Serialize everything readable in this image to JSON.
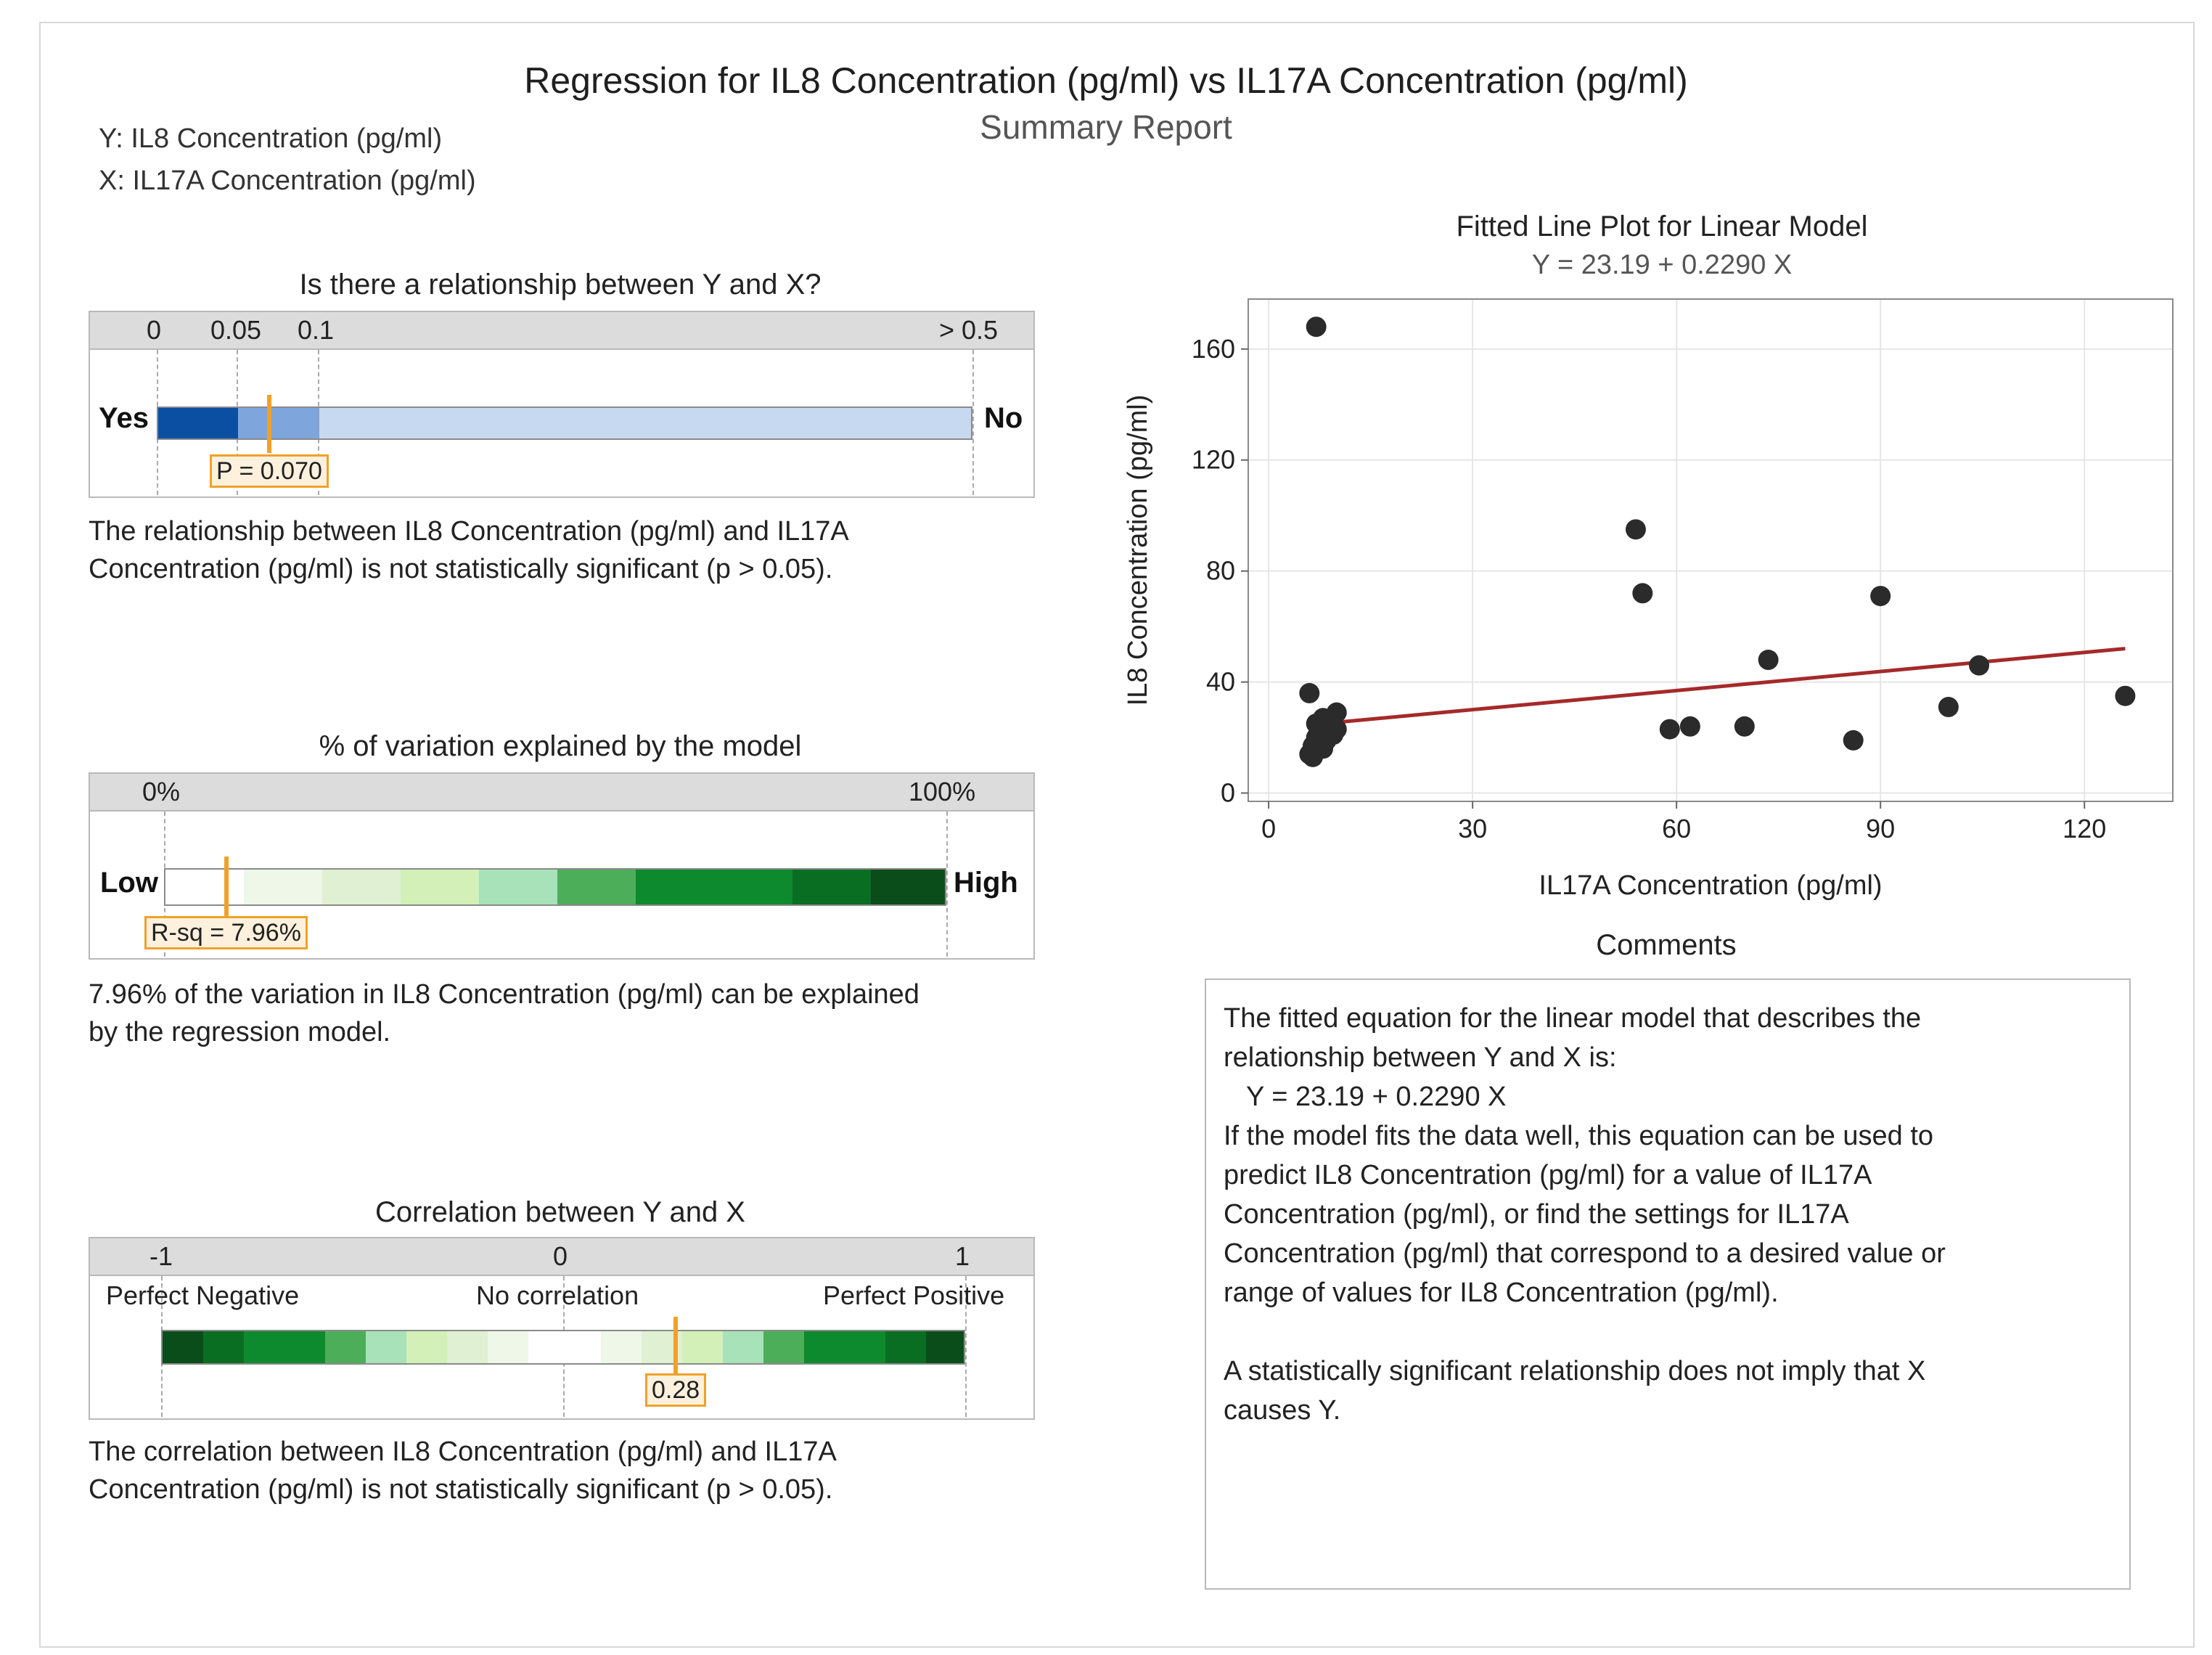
{
  "header": {
    "title": "Regression for IL8 Concentration (pg/ml) vs IL17A Concentration (pg/ml)",
    "subtitle": "Summary Report",
    "y_var": "Y: IL8 Concentration (pg/ml)",
    "x_var": "X: IL17A Concentration (pg/ml)"
  },
  "relationship": {
    "heading": "Is there a relationship between Y and X?",
    "ticks": [
      "0",
      "0.05",
      "0.1",
      "> 0.5"
    ],
    "left_label": "Yes",
    "right_label": "No",
    "p_value": 0.07,
    "p_label": "P = 0.070",
    "description": [
      "The relationship between IL8 Concentration (pg/ml) and IL17A",
      "Concentration (pg/ml) is not statistically significant (p > 0.05)."
    ]
  },
  "variation": {
    "heading": "% of variation explained by the model",
    "tick_left": "0%",
    "tick_right": "100%",
    "left_label": "Low",
    "right_label": "High",
    "r_sq": 7.96,
    "r_sq_label": "R-sq = 7.96%",
    "description": [
      "7.96% of the variation in IL8 Concentration (pg/ml) can be explained",
      "by the regression model."
    ]
  },
  "correlation": {
    "heading": "Correlation between Y and X",
    "ticks": [
      "-1",
      "0",
      "1"
    ],
    "labels": [
      "Perfect Negative",
      "No correlation",
      "Perfect Positive"
    ],
    "value": 0.28,
    "value_label": "0.28",
    "description": [
      "The correlation between IL8 Concentration (pg/ml) and IL17A",
      "Concentration (pg/ml) is not statistically significant (p > 0.05)."
    ]
  },
  "comments": {
    "heading": "Comments",
    "lines": [
      "The fitted equation for the linear model that describes the",
      "relationship between Y and X is:",
      "   Y = 23.19 + 0.2290 X",
      "If the model fits the data well, this equation can be used to",
      "predict IL8 Concentration (pg/ml) for a value of IL17A",
      "Concentration (pg/ml), or find the settings for IL17A",
      "Concentration (pg/ml) that correspond to a desired value or",
      "range of values for IL8 Concentration (pg/ml).",
      "",
      "A statistically significant relationship does not imply that X",
      "causes Y."
    ]
  },
  "colors": {
    "marker": "#f0a12a",
    "fit_line": "#a52a2a",
    "points": "#2b2b2b",
    "grid": "#e6e6e6"
  },
  "chart_data": {
    "type": "scatter",
    "title": "Fitted Line Plot for Linear Model",
    "subtitle": "Y = 23.19 + 0.2290 X",
    "xlabel": "IL17A Concentration (pg/ml)",
    "ylabel": "IL8 Concentration (pg/ml)",
    "xlim": [
      -3,
      133
    ],
    "ylim": [
      -3,
      178
    ],
    "xticks": [
      0,
      30,
      60,
      90,
      120
    ],
    "yticks": [
      0,
      40,
      80,
      120,
      160
    ],
    "grid": true,
    "fit": {
      "intercept": 23.19,
      "slope": 0.229,
      "x_range": [
        6,
        126
      ]
    },
    "points": [
      [
        7,
        168
      ],
      [
        6,
        36
      ],
      [
        6,
        14
      ],
      [
        6.5,
        17
      ],
      [
        7,
        20
      ],
      [
        7,
        25
      ],
      [
        7.5,
        22
      ],
      [
        8,
        16
      ],
      [
        8,
        27
      ],
      [
        8.5,
        19
      ],
      [
        9,
        24
      ],
      [
        9.5,
        21
      ],
      [
        10,
        29
      ],
      [
        10,
        23
      ],
      [
        6.5,
        13
      ],
      [
        54,
        95
      ],
      [
        55,
        72
      ],
      [
        59,
        23
      ],
      [
        62,
        24
      ],
      [
        70,
        24
      ],
      [
        73.5,
        48
      ],
      [
        86,
        19
      ],
      [
        90,
        71
      ],
      [
        100,
        31
      ],
      [
        104.5,
        46
      ],
      [
        126,
        35
      ]
    ]
  }
}
